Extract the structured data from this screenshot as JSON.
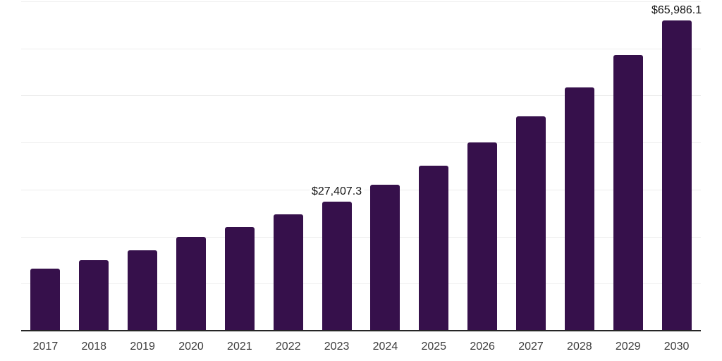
{
  "chart": {
    "background_color": "#ffffff",
    "bar_color": "#36104B",
    "axis_line_color": "#262626",
    "gridline_color": "#ededed",
    "tick_label_color": "#3d3d3d",
    "value_label_color": "#141414"
  },
  "chart_data": {
    "type": "bar",
    "title": "",
    "xlabel": "",
    "ylabel": "",
    "categories": [
      "2017",
      "2018",
      "2019",
      "2020",
      "2021",
      "2022",
      "2023",
      "2024",
      "2025",
      "2026",
      "2027",
      "2028",
      "2029",
      "2030"
    ],
    "values": [
      13200,
      15000,
      17100,
      20000,
      22100,
      24800,
      27407.3,
      31000,
      35000,
      40000,
      45600,
      51700,
      58600,
      65986.1
    ],
    "data_labels": [
      "",
      "",
      "",
      "",
      "",
      "",
      "$27,407.3",
      "",
      "",
      "",
      "",
      "",
      "",
      "$65,986.1"
    ],
    "ylim": [
      0,
      70000
    ],
    "gridline_interval": 10000,
    "grid": "horizontal",
    "legend_position": "none",
    "y_axis_tick_labels_visible": false
  }
}
